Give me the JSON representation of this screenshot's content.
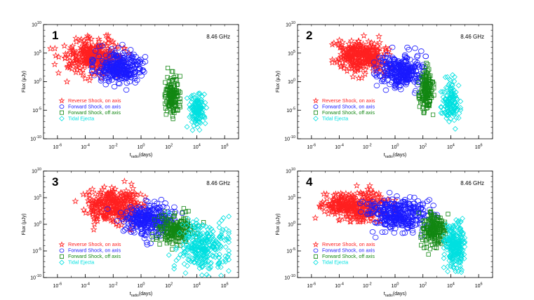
{
  "chart_data": [
    {
      "type": "scatter",
      "panel_number": "1",
      "frequency_label": "8.46 GHz",
      "xlabel_main": "t",
      "xlabel_sub": "radio",
      "xlabel_unit": "(days)",
      "ylabel": "Flux (μJy)",
      "xscale": "log",
      "yscale": "log",
      "xlim": [
        1e-07,
        10000000.0
      ],
      "ylim": [
        1e-10,
        10000000000.0
      ],
      "x_ticks": [
        {
          "base": "10",
          "exp": "-6",
          "v": 1e-06
        },
        {
          "base": "10",
          "exp": "-4",
          "v": 0.0001
        },
        {
          "base": "10",
          "exp": "-2",
          "v": 0.01
        },
        {
          "base": "10",
          "exp": "0",
          "v": 1
        },
        {
          "base": "10",
          "exp": "2",
          "v": 100.0
        },
        {
          "base": "10",
          "exp": "4",
          "v": 10000.0
        },
        {
          "base": "10",
          "exp": "6",
          "v": 1000000.0
        }
      ],
      "y_ticks": [
        {
          "base": "10",
          "exp": "-10",
          "v": 1e-10
        },
        {
          "base": "10",
          "exp": "-5",
          "v": 1e-05
        },
        {
          "base": "10",
          "exp": "0",
          "v": 1
        },
        {
          "base": "10",
          "exp": "5",
          "v": 100000.0
        },
        {
          "base": "10",
          "exp": "10",
          "v": 10000000000.0
        }
      ],
      "legend_placement": "lower-left",
      "series": [
        {
          "name": "Reverse Shock, on axis",
          "marker": "star",
          "color": "#ff2020",
          "log_center": [
            -3.3,
            4.5
          ],
          "log_spread": [
            1.0,
            1.5
          ],
          "log_xrange": [
            -6.5,
            -0.5
          ],
          "log_yrange": [
            0.0,
            9.5
          ],
          "count": 320
        },
        {
          "name": "Forward Shock, on axis",
          "marker": "circle",
          "color": "#1a1aff",
          "log_center": [
            -1.5,
            2.3
          ],
          "log_spread": [
            0.9,
            1.3
          ],
          "log_xrange": [
            -3.5,
            0.3
          ],
          "log_yrange": [
            -1.5,
            6.5
          ],
          "count": 300
        },
        {
          "name": "Forward Shock, off axis",
          "marker": "square",
          "color": "#128712",
          "log_center": [
            2.2,
            -2.5
          ],
          "log_spread": [
            0.25,
            1.7
          ],
          "log_xrange": [
            1.7,
            2.8
          ],
          "log_yrange": [
            -6.5,
            3.0
          ],
          "count": 160
        },
        {
          "name": "Tidal Ejecta",
          "marker": "diamond",
          "color": "#00e0e0",
          "log_center": [
            4.0,
            -5.0
          ],
          "log_spread": [
            0.3,
            1.6
          ],
          "log_xrange": [
            3.3,
            4.7
          ],
          "log_yrange": [
            -8.5,
            0.5
          ],
          "count": 140
        }
      ]
    },
    {
      "type": "scatter",
      "panel_number": "2",
      "frequency_label": "8.46 GHz",
      "xlabel_main": "t",
      "xlabel_sub": "radio",
      "xlabel_unit": "(days)",
      "ylabel": "Flux (μJy)",
      "xscale": "log",
      "yscale": "log",
      "xlim": [
        1e-07,
        10000000.0
      ],
      "ylim": [
        1e-10,
        10000000000.0
      ],
      "x_ticks": [
        {
          "base": "10",
          "exp": "-6",
          "v": 1e-06
        },
        {
          "base": "10",
          "exp": "-4",
          "v": 0.0001
        },
        {
          "base": "10",
          "exp": "-2",
          "v": 0.01
        },
        {
          "base": "10",
          "exp": "0",
          "v": 1
        },
        {
          "base": "10",
          "exp": "2",
          "v": 100.0
        },
        {
          "base": "10",
          "exp": "4",
          "v": 10000.0
        },
        {
          "base": "10",
          "exp": "6",
          "v": 1000000.0
        }
      ],
      "y_ticks": [
        {
          "base": "10",
          "exp": "-10",
          "v": 1e-10
        },
        {
          "base": "10",
          "exp": "-5",
          "v": 1e-05
        },
        {
          "base": "10",
          "exp": "0",
          "v": 1
        },
        {
          "base": "10",
          "exp": "5",
          "v": 100000.0
        },
        {
          "base": "10",
          "exp": "10",
          "v": 10000000000.0
        }
      ],
      "legend_placement": "lower-left",
      "series": [
        {
          "name": "Reverse Shock, on axis",
          "marker": "star",
          "color": "#ff2020",
          "log_center": [
            -2.3,
            4.3
          ],
          "log_spread": [
            0.9,
            1.4
          ],
          "log_xrange": [
            -4.5,
            -0.3
          ],
          "log_yrange": [
            0.0,
            9.5
          ],
          "count": 300
        },
        {
          "name": "Forward Shock, on axis",
          "marker": "circle",
          "color": "#1a1aff",
          "log_center": [
            0.5,
            2.0
          ],
          "log_spread": [
            0.8,
            1.4
          ],
          "log_xrange": [
            -1.5,
            2.2
          ],
          "log_yrange": [
            -2.0,
            6.0
          ],
          "count": 300
        },
        {
          "name": "Forward Shock, off axis",
          "marker": "square",
          "color": "#128712",
          "log_center": [
            2.2,
            -1.5
          ],
          "log_spread": [
            0.25,
            1.7
          ],
          "log_xrange": [
            1.7,
            2.8
          ],
          "log_yrange": [
            -6.0,
            3.5
          ],
          "count": 160
        },
        {
          "name": "Tidal Ejecta",
          "marker": "diamond",
          "color": "#00e0e0",
          "log_center": [
            4.0,
            -3.5
          ],
          "log_spread": [
            0.3,
            1.8
          ],
          "log_xrange": [
            3.3,
            4.7
          ],
          "log_yrange": [
            -8.5,
            2.0
          ],
          "count": 140
        }
      ]
    },
    {
      "type": "scatter",
      "panel_number": "3",
      "frequency_label": "8.46 GHz",
      "xlabel_main": "t",
      "xlabel_sub": "radio",
      "xlabel_unit": "(days)",
      "ylabel": "Flux (μJy)",
      "xscale": "log",
      "yscale": "log",
      "xlim": [
        1e-07,
        10000000.0
      ],
      "ylim": [
        1e-10,
        10000000000.0
      ],
      "x_ticks": [
        {
          "base": "10",
          "exp": "-6",
          "v": 1e-06
        },
        {
          "base": "10",
          "exp": "-4",
          "v": 0.0001
        },
        {
          "base": "10",
          "exp": "-2",
          "v": 0.01
        },
        {
          "base": "10",
          "exp": "0",
          "v": 1
        },
        {
          "base": "10",
          "exp": "2",
          "v": 100.0
        },
        {
          "base": "10",
          "exp": "4",
          "v": 10000.0
        },
        {
          "base": "10",
          "exp": "6",
          "v": 1000000.0
        }
      ],
      "y_ticks": [
        {
          "base": "10",
          "exp": "-10",
          "v": 1e-10
        },
        {
          "base": "10",
          "exp": "-5",
          "v": 1e-05
        },
        {
          "base": "10",
          "exp": "0",
          "v": 1
        },
        {
          "base": "10",
          "exp": "5",
          "v": 100000.0
        },
        {
          "base": "10",
          "exp": "10",
          "v": 10000000000.0
        }
      ],
      "legend_placement": "lower-left",
      "series": [
        {
          "name": "Reverse Shock, on axis",
          "marker": "star",
          "color": "#ff2020",
          "log_center": [
            -2.0,
            3.5
          ],
          "log_spread": [
            1.0,
            1.6
          ],
          "log_xrange": [
            -6.0,
            0.3
          ],
          "log_yrange": [
            -1.0,
            9.5
          ],
          "count": 320
        },
        {
          "name": "Forward Shock, on axis",
          "marker": "circle",
          "color": "#1a1aff",
          "log_center": [
            0.5,
            1.0
          ],
          "log_spread": [
            0.9,
            1.5
          ],
          "log_xrange": [
            -2.5,
            3.0
          ],
          "log_yrange": [
            -4.0,
            6.0
          ],
          "count": 300
        },
        {
          "name": "Forward Shock, off axis",
          "marker": "square",
          "color": "#128712",
          "log_center": [
            2.5,
            -1.0
          ],
          "log_spread": [
            0.7,
            1.4
          ],
          "log_xrange": [
            0.8,
            4.5
          ],
          "log_yrange": [
            -6.0,
            3.0
          ],
          "count": 200
        },
        {
          "name": "Tidal Ejecta",
          "marker": "diamond",
          "color": "#00e0e0",
          "log_center": [
            4.5,
            -4.0
          ],
          "log_spread": [
            0.9,
            2.4
          ],
          "log_xrange": [
            2.0,
            6.3
          ],
          "log_yrange": [
            -9.8,
            9.5
          ],
          "count": 300
        }
      ]
    },
    {
      "type": "scatter",
      "panel_number": "4",
      "frequency_label": "8.46 GHz",
      "xlabel_main": "t",
      "xlabel_sub": "radio",
      "xlabel_unit": "(days)",
      "ylabel": "Flux (μJy)",
      "xscale": "log",
      "yscale": "log",
      "xlim": [
        1e-07,
        10000000.0
      ],
      "ylim": [
        1e-10,
        10000000000.0
      ],
      "x_ticks": [
        {
          "base": "10",
          "exp": "-6",
          "v": 1e-06
        },
        {
          "base": "10",
          "exp": "-4",
          "v": 0.0001
        },
        {
          "base": "10",
          "exp": "-2",
          "v": 0.01
        },
        {
          "base": "10",
          "exp": "0",
          "v": 1
        },
        {
          "base": "10",
          "exp": "2",
          "v": 100.0
        },
        {
          "base": "10",
          "exp": "4",
          "v": 10000.0
        },
        {
          "base": "10",
          "exp": "6",
          "v": 1000000.0
        }
      ],
      "y_ticks": [
        {
          "base": "10",
          "exp": "-10",
          "v": 1e-10
        },
        {
          "base": "10",
          "exp": "-5",
          "v": 1e-05
        },
        {
          "base": "10",
          "exp": "0",
          "v": 1
        },
        {
          "base": "10",
          "exp": "5",
          "v": 100000.0
        },
        {
          "base": "10",
          "exp": "10",
          "v": 10000000000.0
        }
      ],
      "legend_placement": "lower-left",
      "series": [
        {
          "name": "Reverse Shock, on axis",
          "marker": "star",
          "color": "#ff2020",
          "log_center": [
            -2.8,
            3.5
          ],
          "log_spread": [
            1.2,
            1.3
          ],
          "log_xrange": [
            -6.0,
            0.0
          ],
          "log_yrange": [
            0.5,
            9.5
          ],
          "count": 320
        },
        {
          "name": "Forward Shock, on axis",
          "marker": "circle",
          "color": "#1a1aff",
          "log_center": [
            0.3,
            2.0
          ],
          "log_spread": [
            1.1,
            1.5
          ],
          "log_xrange": [
            -2.5,
            3.0
          ],
          "log_yrange": [
            -3.0,
            9.5
          ],
          "count": 320
        },
        {
          "name": "Forward Shock, off axis",
          "marker": "square",
          "color": "#128712",
          "log_center": [
            2.8,
            -1.0
          ],
          "log_spread": [
            0.4,
            1.6
          ],
          "log_xrange": [
            1.7,
            3.8
          ],
          "log_yrange": [
            -6.5,
            3.5
          ],
          "count": 200
        },
        {
          "name": "Tidal Ejecta",
          "marker": "diamond",
          "color": "#00e0e0",
          "log_center": [
            4.3,
            -4.0
          ],
          "log_spread": [
            0.35,
            2.3
          ],
          "log_xrange": [
            3.5,
            5.0
          ],
          "log_yrange": [
            -9.8,
            3.0
          ],
          "count": 240
        }
      ]
    }
  ]
}
